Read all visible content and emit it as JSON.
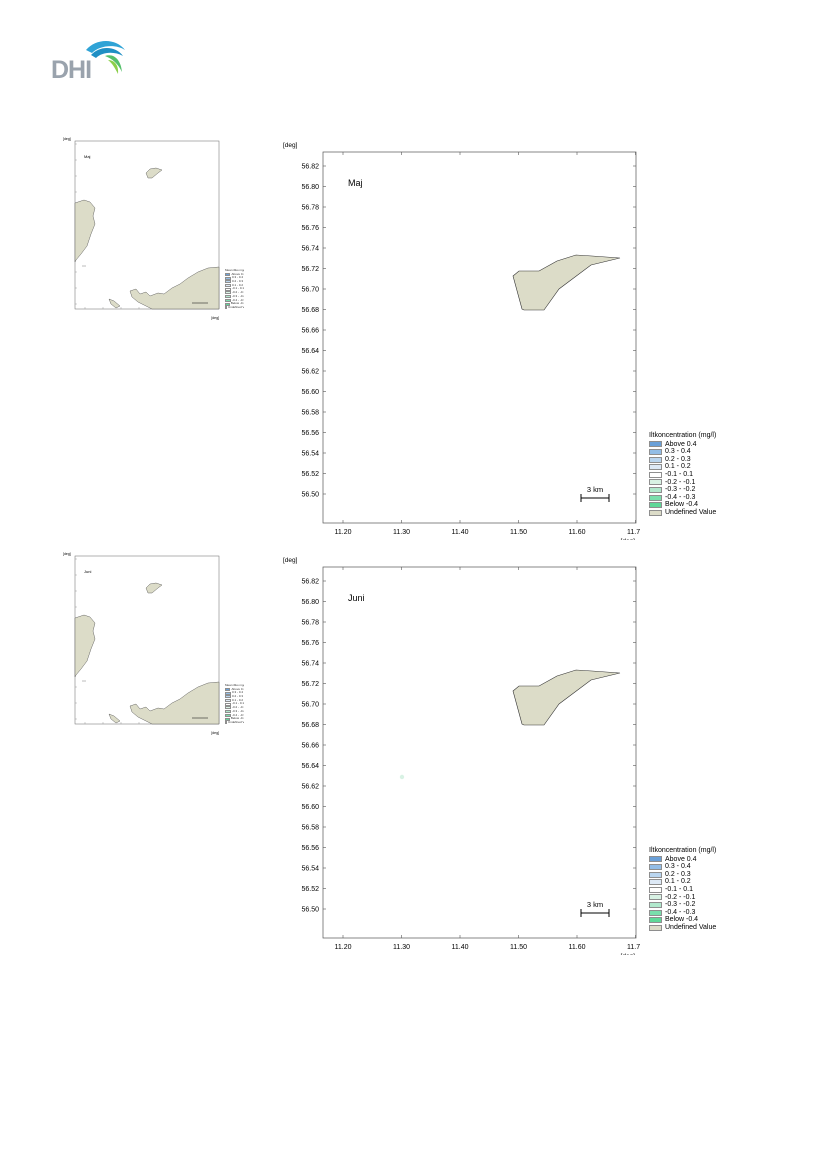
{
  "logo": {
    "text": "DHI"
  },
  "legend_colors": [
    "#6aa0d8",
    "#92bde6",
    "#b9d5ef",
    "#dde9f6",
    "#ffffff",
    "#d8f2e4",
    "#b0e8cc",
    "#79deac",
    "#5fd898",
    "#dcdcc8"
  ],
  "land_color": "#dcdcc8",
  "panels": [
    {
      "id": "maj",
      "month_label": "Maj",
      "axis_unit_y": "[deg]",
      "axis_unit_x": "[deg]",
      "y_ticks": [
        "56.82",
        "56.80",
        "56.78",
        "56.76",
        "56.74",
        "56.72",
        "56.70",
        "56.68",
        "56.66",
        "56.64",
        "56.62",
        "56.60",
        "56.58",
        "56.56",
        "56.54",
        "56.52",
        "56.50"
      ],
      "x_ticks": [
        "11.20",
        "11.30",
        "11.40",
        "11.50",
        "11.60",
        "11.70"
      ],
      "scale_bar_label": "3 km",
      "legend_title": "Iltkoncentration (mg/l)",
      "legend_items": [
        "Above  0.4",
        "  0.3 -  0.4",
        "  0.2 -  0.3",
        "  0.1 -  0.2",
        "-0.1 -  0.1",
        "-0.2 - -0.1",
        "-0.3 - -0.2",
        "-0.4 - -0.3",
        "Below -0.4",
        "Undefined Value"
      ],
      "overview": {
        "month_label": "Maj",
        "axis_unit": "[deg]",
        "legend_title": "Mean iltko mg/l",
        "legend_items": [
          "Above 0.4",
          "0.3 - 0.4",
          "0.2 - 0.3",
          "0.1 - 0.2",
          "-0.1 - 0.1",
          "-0.2 - -0.1",
          "-0.3 - -0.2",
          "-0.4 - -0.3",
          "Below -0.4",
          "Undefined Value"
        ]
      }
    },
    {
      "id": "juni",
      "month_label": "Juni",
      "axis_unit_y": "[deg]",
      "axis_unit_x": "[deg]",
      "y_ticks": [
        "56.82",
        "56.80",
        "56.78",
        "56.76",
        "56.74",
        "56.72",
        "56.70",
        "56.68",
        "56.66",
        "56.64",
        "56.62",
        "56.60",
        "56.58",
        "56.56",
        "56.54",
        "56.52",
        "56.50"
      ],
      "x_ticks": [
        "11.20",
        "11.30",
        "11.40",
        "11.50",
        "11.60",
        "11.70"
      ],
      "scale_bar_label": "3 km",
      "legend_title": "Iltkoncentration (mg/l)",
      "legend_items": [
        "Above  0.4",
        "  0.3 -  0.4",
        "  0.2 -  0.3",
        "  0.1 -  0.2",
        "-0.1 -  0.1",
        "-0.2 - -0.1",
        "-0.3 - -0.2",
        "-0.4 - -0.3",
        "Below -0.4",
        "Undefined Value"
      ],
      "overview": {
        "month_label": "Juni",
        "axis_unit": "[deg]",
        "legend_title": "Mean iltko mg/l",
        "legend_items": [
          "Above 0.4",
          "0.3 - 0.4",
          "0.2 - 0.3",
          "0.1 - 0.2",
          "-0.1 - 0.1",
          "-0.2 - -0.1",
          "-0.3 - -0.2",
          "-0.4 - -0.3",
          "Below -0.4",
          "Undefined Value"
        ]
      }
    }
  ]
}
